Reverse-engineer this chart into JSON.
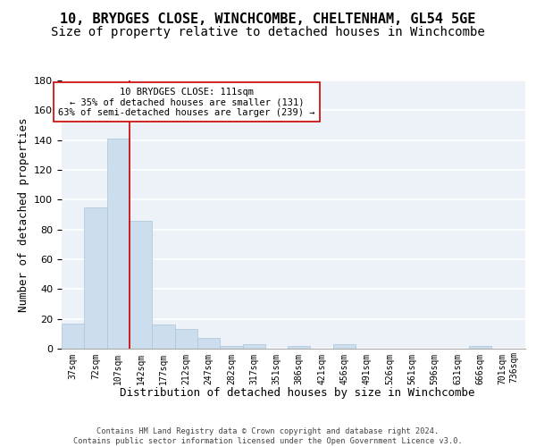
{
  "title_line1": "10, BRYDGES CLOSE, WINCHCOMBE, CHELTENHAM, GL54 5GE",
  "title_line2": "Size of property relative to detached houses in Winchcombe",
  "xlabel": "Distribution of detached houses by size in Winchcombe",
  "ylabel": "Number of detached properties",
  "bar_values": [
    17,
    95,
    141,
    86,
    16,
    13,
    7,
    2,
    3,
    0,
    2,
    0,
    3,
    0,
    0,
    0,
    0,
    0,
    2,
    0
  ],
  "bar_labels": [
    "37sqm",
    "72sqm",
    "107sqm",
    "142sqm",
    "177sqm",
    "212sqm",
    "247sqm",
    "282sqm",
    "317sqm",
    "351sqm",
    "386sqm",
    "421sqm",
    "456sqm",
    "491sqm",
    "526sqm",
    "561sqm",
    "596sqm",
    "631sqm",
    "666sqm",
    "701sqm"
  ],
  "x_extra_label": "736sqm",
  "bar_color": "#ccdded",
  "bar_edgecolor": "#aac4d8",
  "vline_x": 2.5,
  "vline_color": "#cc0000",
  "annotation_text": "10 BRYDGES CLOSE: 111sqm\n← 35% of detached houses are smaller (131)\n63% of semi-detached houses are larger (239) →",
  "annotation_box_color": "white",
  "annotation_box_edgecolor": "#cc0000",
  "ylim": [
    0,
    180
  ],
  "yticks": [
    0,
    20,
    40,
    60,
    80,
    100,
    120,
    140,
    160,
    180
  ],
  "background_color": "#edf2f9",
  "grid_color": "white",
  "footer_text": "Contains HM Land Registry data © Crown copyright and database right 2024.\nContains public sector information licensed under the Open Government Licence v3.0.",
  "title_fontsize": 11,
  "subtitle_fontsize": 10,
  "xlabel_fontsize": 9,
  "ylabel_fontsize": 9
}
